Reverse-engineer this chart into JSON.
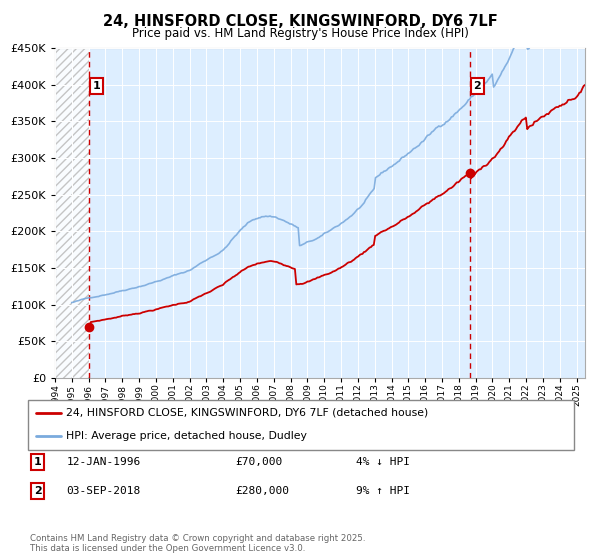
{
  "title": "24, HINSFORD CLOSE, KINGSWINFORD, DY6 7LF",
  "subtitle": "Price paid vs. HM Land Registry's House Price Index (HPI)",
  "sale1_date": "12-JAN-1996",
  "sale1_price": 70000,
  "sale1_label": "1",
  "sale1_year": 1996.04,
  "sale2_date": "03-SEP-2018",
  "sale2_price": 280000,
  "sale2_label": "2",
  "sale2_year": 2018.67,
  "legend_line1": "24, HINSFORD CLOSE, KINGSWINFORD, DY6 7LF (detached house)",
  "legend_line2": "HPI: Average price, detached house, Dudley",
  "red_color": "#cc0000",
  "blue_color": "#7aaadd",
  "plot_bg": "#ddeeff",
  "ylim_max": 450000,
  "xmin": 1994.0,
  "xmax": 2025.5,
  "copyright": "Contains HM Land Registry data © Crown copyright and database right 2025.\nThis data is licensed under the Open Government Licence v3.0."
}
